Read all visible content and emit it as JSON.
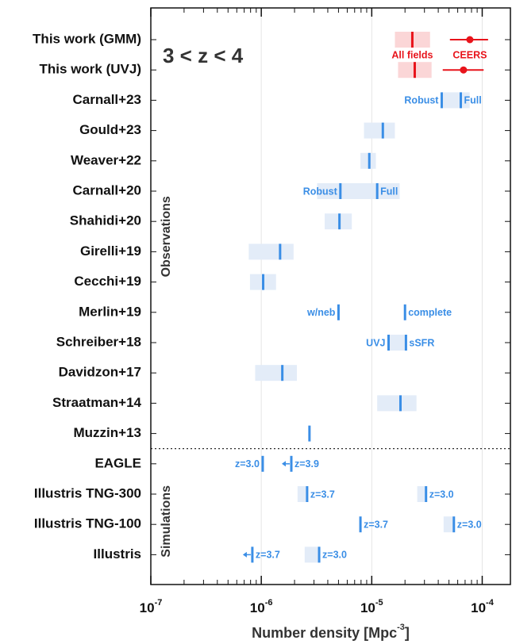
{
  "chart_data": {
    "type": "range",
    "title": "3 < z < 4",
    "xlabel": "Number density [Mpc-3]",
    "xscale": "log",
    "xlim": [
      1e-07,
      0.00018
    ],
    "xticks": [
      {
        "value": 1e-07,
        "label": "10-7"
      },
      {
        "value": 1e-06,
        "label": "10-6"
      },
      {
        "value": 1e-05,
        "label": "10-5"
      },
      {
        "value": 0.0001,
        "label": "10-4"
      }
    ],
    "grid": true,
    "color": "#3a8ee6",
    "range_color": "#e3ecf8",
    "groups": [
      {
        "name": "Observations",
        "count": 14
      },
      {
        "name": "Simulations",
        "count": 4
      }
    ],
    "rows": [
      {
        "name": "This work (GMM)",
        "color": "#e8141b",
        "range_color": "#fbd6d7",
        "marks": [
          {
            "kind": "line",
            "value": 2.33e-05,
            "range": [
              1.62e-05,
              3.37e-05
            ],
            "label": "All fields",
            "side": "below"
          },
          {
            "kind": "point",
            "value": 7.73e-05,
            "range": [
              5.1e-05,
              0.000113
            ],
            "label": "CEERS",
            "side": "below"
          }
        ]
      },
      {
        "name": "This work (UVJ)",
        "color": "#e8141b",
        "range_color": "#fbd6d7",
        "marks": [
          {
            "kind": "line",
            "value": 2.45e-05,
            "range": [
              1.73e-05,
              3.48e-05
            ]
          },
          {
            "kind": "point",
            "value": 6.77e-05,
            "range": [
              4.39e-05,
              0.000103
            ]
          }
        ]
      },
      {
        "name": "Carnall+23",
        "marks": [
          {
            "kind": "line",
            "value": 4.3e-05,
            "range": [
              4.3e-05,
              7.7e-05
            ],
            "label": "Robust",
            "side": "left"
          },
          {
            "kind": "line",
            "value": 6.4e-05,
            "label": "Full",
            "side": "right"
          }
        ]
      },
      {
        "name": "Gould+23",
        "marks": [
          {
            "kind": "line",
            "value": 1.26e-05,
            "range": [
              8.5e-06,
              1.62e-05
            ]
          }
        ]
      },
      {
        "name": "Weaver+22",
        "marks": [
          {
            "kind": "line",
            "value": 9.5e-06,
            "range": [
              7.9e-06,
              1.09e-05
            ]
          }
        ]
      },
      {
        "name": "Carnall+20",
        "marks": [
          {
            "kind": "line",
            "value": 5.2e-06,
            "range": [
              3.2e-06,
              1.79e-05
            ],
            "label": "Robust",
            "side": "left"
          },
          {
            "kind": "line",
            "value": 1.12e-05,
            "label": "Full",
            "side": "right"
          }
        ]
      },
      {
        "name": "Shahidi+20",
        "marks": [
          {
            "kind": "line",
            "value": 5.1e-06,
            "range": [
              3.75e-06,
              6.6e-06
            ]
          }
        ]
      },
      {
        "name": "Girelli+19",
        "marks": [
          {
            "kind": "line",
            "value": 1.48e-06,
            "range": [
              7.7e-07,
              1.96e-06
            ]
          }
        ]
      },
      {
        "name": "Cecchi+19",
        "marks": [
          {
            "kind": "line",
            "value": 1.04e-06,
            "range": [
              7.9e-07,
              1.36e-06
            ]
          }
        ]
      },
      {
        "name": "Merlin+19",
        "marks": [
          {
            "kind": "line",
            "value": 5e-06,
            "label": "w/neb",
            "side": "left"
          },
          {
            "kind": "line",
            "value": 2e-05,
            "label": "complete",
            "side": "right"
          }
        ]
      },
      {
        "name": "Schreiber+18",
        "marks": [
          {
            "kind": "line",
            "value": 1.42e-05,
            "range": [
              1.42e-05,
              2.04e-05
            ],
            "label": "UVJ",
            "side": "left"
          },
          {
            "kind": "line",
            "value": 2.04e-05,
            "label": "sSFR",
            "side": "right"
          }
        ]
      },
      {
        "name": "Davidzon+17",
        "marks": [
          {
            "kind": "line",
            "value": 1.55e-06,
            "range": [
              8.8e-07,
              2.1e-06
            ]
          }
        ]
      },
      {
        "name": "Straatman+14",
        "marks": [
          {
            "kind": "line",
            "value": 1.82e-05,
            "range": [
              1.12e-05,
              2.54e-05
            ]
          }
        ]
      },
      {
        "name": "Muzzin+13",
        "marks": [
          {
            "kind": "line",
            "value": 2.73e-06
          }
        ]
      },
      {
        "name": "EAGLE",
        "marks": [
          {
            "kind": "line",
            "value": 1.03e-06,
            "label": "z=3.0",
            "side": "left"
          },
          {
            "kind": "upper_limit",
            "value": 1.87e-06,
            "label": "z=3.9",
            "side": "right"
          }
        ]
      },
      {
        "name": "Illustris TNG-300",
        "marks": [
          {
            "kind": "line",
            "value": 2.6e-06,
            "range": [
              2.13e-06,
              2.6e-06
            ],
            "label": "z=3.7",
            "side": "right"
          },
          {
            "kind": "line",
            "value": 3.1e-05,
            "range": [
              2.58e-05,
              3.1e-05
            ],
            "label": "z=3.0",
            "side": "right"
          }
        ]
      },
      {
        "name": "Illustris TNG-100",
        "marks": [
          {
            "kind": "line",
            "value": 7.9e-06,
            "label": "z=3.7",
            "side": "right"
          },
          {
            "kind": "line",
            "value": 5.54e-05,
            "range": [
              4.47e-05,
              5.54e-05
            ],
            "label": "z=3.0",
            "side": "right"
          }
        ]
      },
      {
        "name": "Illustris",
        "marks": [
          {
            "kind": "upper_limit",
            "value": 8.3e-07,
            "label": "z=3.7",
            "side": "right"
          },
          {
            "kind": "line",
            "value": 3.34e-06,
            "range": [
              2.47e-06,
              3.34e-06
            ],
            "label": "z=3.0",
            "side": "right"
          }
        ]
      }
    ]
  }
}
